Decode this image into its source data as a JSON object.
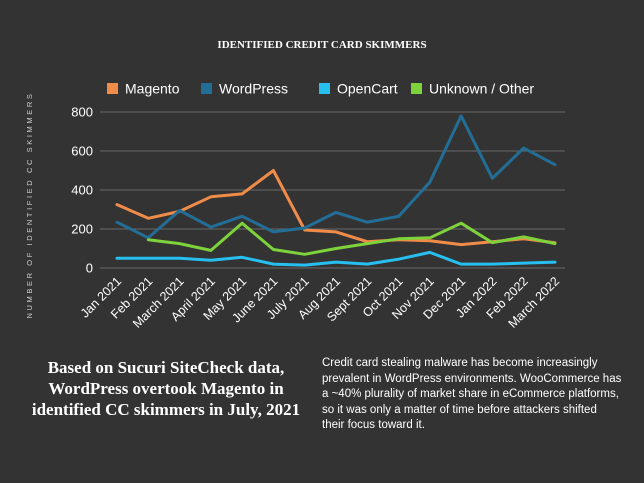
{
  "chart_data": {
    "type": "line",
    "title": "IDENTIFIED CREDIT CARD SKIMMERS",
    "ylabel": "NUMBER OF IDENTIFIED CC SKIMMERS",
    "xlabel": "",
    "ylim": [
      0,
      800
    ],
    "yticks": [
      0,
      200,
      400,
      600,
      800
    ],
    "grid": "horizontal",
    "legend_position": "top",
    "categories": [
      "Jan 2021",
      "Feb 2021",
      "March 2021",
      "April 2021",
      "May 2021",
      "June 2021",
      "July 2021",
      "Aug 2021",
      "Sept 2021",
      "Oct 2021",
      "Nov 2021",
      "Dec 2021",
      "Jan 2022",
      "Feb 2022",
      "March 2022"
    ],
    "series": [
      {
        "name": "Magento",
        "color": "#ef8c4a",
        "values": [
          325,
          255,
          290,
          365,
          380,
          500,
          195,
          185,
          135,
          145,
          140,
          120,
          135,
          150,
          130
        ]
      },
      {
        "name": "WordPress",
        "color": "#236e96",
        "values": [
          235,
          155,
          295,
          210,
          265,
          185,
          205,
          285,
          235,
          265,
          440,
          780,
          460,
          615,
          530
        ]
      },
      {
        "name": "OpenCart",
        "color": "#27bff0",
        "values": [
          50,
          50,
          50,
          40,
          55,
          20,
          15,
          30,
          20,
          45,
          80,
          20,
          20,
          25,
          30
        ]
      },
      {
        "name": "Unknown / Other",
        "color": "#7ed23c",
        "values": [
          null,
          145,
          125,
          90,
          230,
          95,
          70,
          100,
          125,
          150,
          155,
          230,
          130,
          160,
          125
        ]
      }
    ]
  },
  "caption": {
    "left": "Based on Sucuri SiteCheck data, WordPress overtook Magento in identified CC skimmers in July, 2021",
    "right": "Credit card stealing malware has become increasingly prevalent  in WordPress environments. WooCommerce has a ~40% plurality of market share in eCommerce platforms, so it was only a matter of time before attackers shifted their focus toward it."
  }
}
